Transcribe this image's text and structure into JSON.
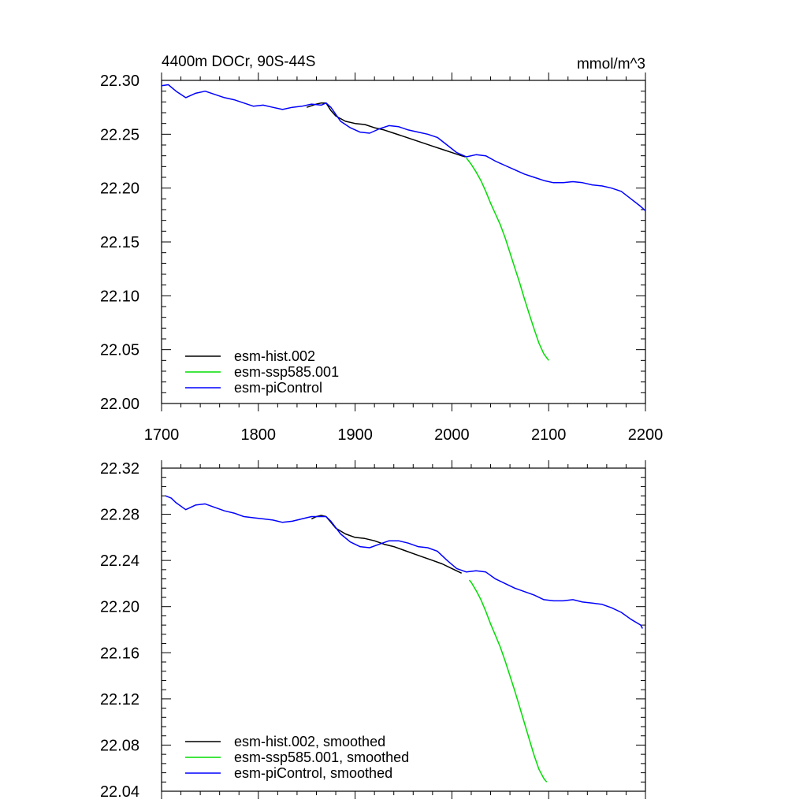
{
  "chart_data": [
    {
      "type": "line",
      "title_left": "4400m DOCr, 90S-44S",
      "title_right": "mmol/m^3",
      "xlabel": "",
      "ylabel": "",
      "xlim": [
        1700,
        2200
      ],
      "ylim": [
        22.0,
        22.3
      ],
      "x_ticks": [
        1700,
        1800,
        1900,
        2000,
        2100,
        2200
      ],
      "x_tick_labels": [
        "1700",
        "1800",
        "1900",
        "2000",
        "2100",
        "2200"
      ],
      "y_ticks": [
        22.0,
        22.05,
        22.1,
        22.15,
        22.2,
        22.25,
        22.3
      ],
      "y_tick_labels": [
        "22.00",
        "22.05",
        "22.10",
        "22.15",
        "22.20",
        "22.25",
        "22.30"
      ],
      "legend_position": "bottom-left",
      "series": [
        {
          "name": "esm-hist.002",
          "color": "#000000",
          "x": [
            1850,
            1860,
            1865,
            1870,
            1875,
            1880,
            1890,
            1900,
            1910,
            1920,
            1930,
            1940,
            1950,
            1960,
            1970,
            1980,
            1990,
            2000,
            2010,
            2014
          ],
          "y": [
            22.275,
            22.278,
            22.279,
            22.279,
            22.272,
            22.267,
            22.262,
            22.26,
            22.259,
            22.256,
            22.254,
            22.251,
            22.248,
            22.245,
            22.242,
            22.239,
            22.236,
            22.233,
            22.23,
            22.229
          ]
        },
        {
          "name": "esm-ssp585.001",
          "color": "#00dd00",
          "x": [
            2015,
            2020,
            2025,
            2030,
            2035,
            2040,
            2045,
            2050,
            2055,
            2060,
            2065,
            2070,
            2075,
            2080,
            2085,
            2090,
            2095,
            2100
          ],
          "y": [
            22.228,
            22.222,
            22.215,
            22.207,
            22.197,
            22.186,
            22.176,
            22.166,
            22.154,
            22.14,
            22.126,
            22.112,
            22.097,
            22.083,
            22.069,
            22.056,
            22.046,
            22.04
          ]
        },
        {
          "name": "esm-piControl",
          "color": "#0000ff",
          "x": [
            1700,
            1707,
            1715,
            1725,
            1735,
            1745,
            1755,
            1765,
            1775,
            1785,
            1795,
            1805,
            1815,
            1825,
            1835,
            1845,
            1855,
            1865,
            1870,
            1875,
            1885,
            1895,
            1905,
            1915,
            1925,
            1935,
            1945,
            1955,
            1965,
            1975,
            1985,
            1995,
            2005,
            2015,
            2025,
            2035,
            2045,
            2055,
            2065,
            2075,
            2085,
            2095,
            2105,
            2115,
            2125,
            2135,
            2145,
            2155,
            2165,
            2175,
            2185,
            2195,
            2200
          ],
          "y": [
            22.295,
            22.296,
            22.29,
            22.284,
            22.288,
            22.29,
            22.287,
            22.284,
            22.282,
            22.279,
            22.276,
            22.277,
            22.275,
            22.273,
            22.275,
            22.276,
            22.278,
            22.277,
            22.279,
            22.275,
            22.262,
            22.256,
            22.252,
            22.251,
            22.255,
            22.258,
            22.257,
            22.254,
            22.252,
            22.25,
            22.247,
            22.24,
            22.233,
            22.229,
            22.231,
            22.23,
            22.225,
            22.221,
            22.217,
            22.213,
            22.21,
            22.207,
            22.205,
            22.205,
            22.206,
            22.205,
            22.203,
            22.202,
            22.2,
            22.197,
            22.19,
            22.183,
            22.179
          ]
        }
      ]
    },
    {
      "type": "line",
      "title_left": "",
      "title_right": "",
      "xlabel": "",
      "ylabel": "",
      "xlim": [
        1700,
        2200
      ],
      "ylim": [
        22.04,
        22.32
      ],
      "x_ticks": [
        1700,
        1800,
        1900,
        2000,
        2100,
        2200
      ],
      "x_tick_labels": [],
      "y_ticks": [
        22.04,
        22.08,
        22.12,
        22.16,
        22.2,
        22.24,
        22.28,
        22.32
      ],
      "y_tick_labels": [
        "22.04",
        "22.08",
        "22.12",
        "22.16",
        "22.20",
        "22.24",
        "22.28",
        "22.32"
      ],
      "legend_position": "bottom-left",
      "series": [
        {
          "name": "esm-hist.002, smoothed",
          "color": "#000000",
          "x": [
            1855,
            1860,
            1865,
            1870,
            1875,
            1880,
            1890,
            1900,
            1910,
            1920,
            1930,
            1940,
            1950,
            1960,
            1970,
            1980,
            1990,
            2000,
            2010
          ],
          "y": [
            22.276,
            22.278,
            22.279,
            22.278,
            22.273,
            22.268,
            22.263,
            22.26,
            22.259,
            22.257,
            22.254,
            22.252,
            22.249,
            22.246,
            22.243,
            22.24,
            22.237,
            22.233,
            22.229
          ]
        },
        {
          "name": "esm-ssp585.001, smoothed",
          "color": "#00dd00",
          "x": [
            2018,
            2020,
            2025,
            2030,
            2035,
            2040,
            2045,
            2050,
            2055,
            2060,
            2065,
            2070,
            2075,
            2080,
            2085,
            2090,
            2095,
            2098
          ],
          "y": [
            22.223,
            22.221,
            22.214,
            22.206,
            22.196,
            22.185,
            22.175,
            22.165,
            22.153,
            22.14,
            22.127,
            22.113,
            22.099,
            22.085,
            22.071,
            22.059,
            22.051,
            22.048
          ]
        },
        {
          "name": "esm-piControl, smoothed",
          "color": "#0000ff",
          "x": [
            1704,
            1710,
            1715,
            1725,
            1735,
            1745,
            1755,
            1765,
            1775,
            1785,
            1795,
            1805,
            1815,
            1825,
            1835,
            1845,
            1855,
            1865,
            1870,
            1875,
            1885,
            1895,
            1905,
            1915,
            1925,
            1935,
            1945,
            1955,
            1965,
            1975,
            1985,
            1995,
            2005,
            2015,
            2025,
            2035,
            2045,
            2055,
            2065,
            2075,
            2085,
            2095,
            2105,
            2115,
            2125,
            2135,
            2145,
            2155,
            2165,
            2175,
            2185,
            2195,
            2197
          ],
          "y": [
            22.296,
            22.294,
            22.29,
            22.284,
            22.288,
            22.289,
            22.286,
            22.283,
            22.281,
            22.278,
            22.277,
            22.276,
            22.275,
            22.273,
            22.274,
            22.276,
            22.278,
            22.278,
            22.278,
            22.274,
            22.263,
            22.256,
            22.252,
            22.251,
            22.254,
            22.257,
            22.257,
            22.255,
            22.252,
            22.251,
            22.248,
            22.24,
            22.233,
            22.23,
            22.231,
            22.23,
            22.224,
            22.22,
            22.216,
            22.213,
            22.21,
            22.206,
            22.205,
            22.205,
            22.206,
            22.204,
            22.203,
            22.202,
            22.199,
            22.195,
            22.189,
            22.184,
            22.181
          ]
        }
      ]
    }
  ]
}
